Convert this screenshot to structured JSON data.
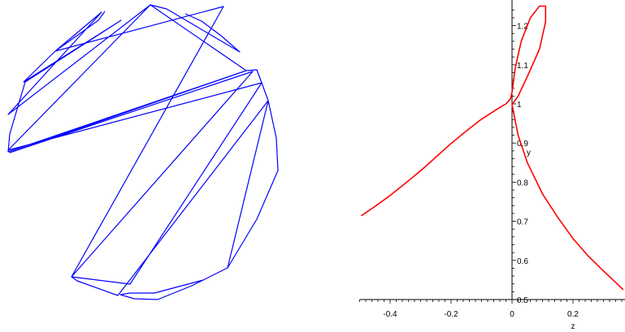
{
  "chart_data": [
    {
      "type": "line",
      "title": "",
      "xlabel": "",
      "ylabel": "",
      "axes_visible": false,
      "line_color": "#0000ff",
      "series": [
        {
          "values": [
            [
              129,
              14
            ],
            [
              121,
              25
            ],
            [
              68,
              63
            ],
            [
              29,
              101
            ],
            [
              149,
              25
            ],
            [
              31,
              101
            ],
            [
              12,
              165
            ],
            [
              10,
              187
            ],
            [
              303,
              87
            ],
            [
              12,
              188
            ],
            [
              311,
              88
            ],
            [
              88,
              341
            ],
            [
              275,
              8
            ],
            [
              68,
              63
            ],
            [
              125,
              15
            ],
            [
              10,
              141
            ],
            [
              185,
              6
            ],
            [
              10,
              185
            ],
            [
              322,
              102
            ],
            [
              160,
              350
            ],
            [
              88,
              341
            ],
            [
              95,
              346
            ],
            [
              145,
              364
            ],
            [
              330,
              124
            ],
            [
              280,
              330
            ],
            [
              250,
              345
            ],
            [
              190,
              361
            ],
            [
              160,
              361
            ],
            [
              148,
              363
            ],
            [
              165,
              368
            ],
            [
              194,
              369
            ],
            [
              236,
              352
            ],
            [
              280,
              330
            ],
            [
              316,
              270
            ],
            [
              342,
              210
            ],
            [
              340,
              170
            ],
            [
              330,
              124
            ],
            [
              322,
              102
            ],
            [
              316,
              86
            ],
            [
              303,
              87
            ],
            [
              185,
              6
            ],
            [
              205,
              11
            ],
            [
              295,
              64
            ],
            [
              272,
              44
            ],
            [
              248,
              26
            ],
            [
              228,
              17
            ]
          ]
        }
      ]
    },
    {
      "type": "line",
      "title": "",
      "xlabel": "z",
      "ylabel": "y",
      "xlim": [
        -0.5,
        0.37
      ],
      "ylim": [
        0.5,
        1.25
      ],
      "line_color": "#ff0000",
      "x_ticks": [
        "-0.4",
        "-0.2",
        "0",
        "0.2"
      ],
      "y_ticks": [
        "0.5",
        "0.6",
        "0.7",
        "0.8",
        "0.9",
        "1",
        "1.1",
        "1.2"
      ],
      "series": [
        {
          "values": [
            [
              -0.495,
              0.714
            ],
            [
              -0.45,
              0.738
            ],
            [
              -0.4,
              0.766
            ],
            [
              -0.35,
              0.797
            ],
            [
              -0.3,
              0.829
            ],
            [
              -0.25,
              0.864
            ],
            [
              -0.2,
              0.899
            ],
            [
              -0.15,
              0.931
            ],
            [
              -0.1,
              0.961
            ],
            [
              -0.05,
              0.986
            ],
            [
              -0.02,
              1.0
            ],
            [
              -0.005,
              1.013
            ],
            [
              0.0,
              1.03
            ],
            [
              0.01,
              1.09
            ],
            [
              0.03,
              1.16
            ],
            [
              0.06,
              1.22
            ],
            [
              0.09,
              1.25
            ],
            [
              0.11,
              1.25
            ],
            [
              0.11,
              1.21
            ],
            [
              0.09,
              1.14
            ],
            [
              0.05,
              1.07
            ],
            [
              0.02,
              1.02
            ],
            [
              0.0,
              0.998
            ],
            [
              0.02,
              0.92
            ],
            [
              0.05,
              0.85
            ],
            [
              0.1,
              0.77
            ],
            [
              0.15,
              0.71
            ],
            [
              0.2,
              0.656
            ],
            [
              0.25,
              0.611
            ],
            [
              0.3,
              0.573
            ],
            [
              0.35,
              0.536
            ],
            [
              0.365,
              0.525
            ]
          ]
        }
      ]
    }
  ]
}
